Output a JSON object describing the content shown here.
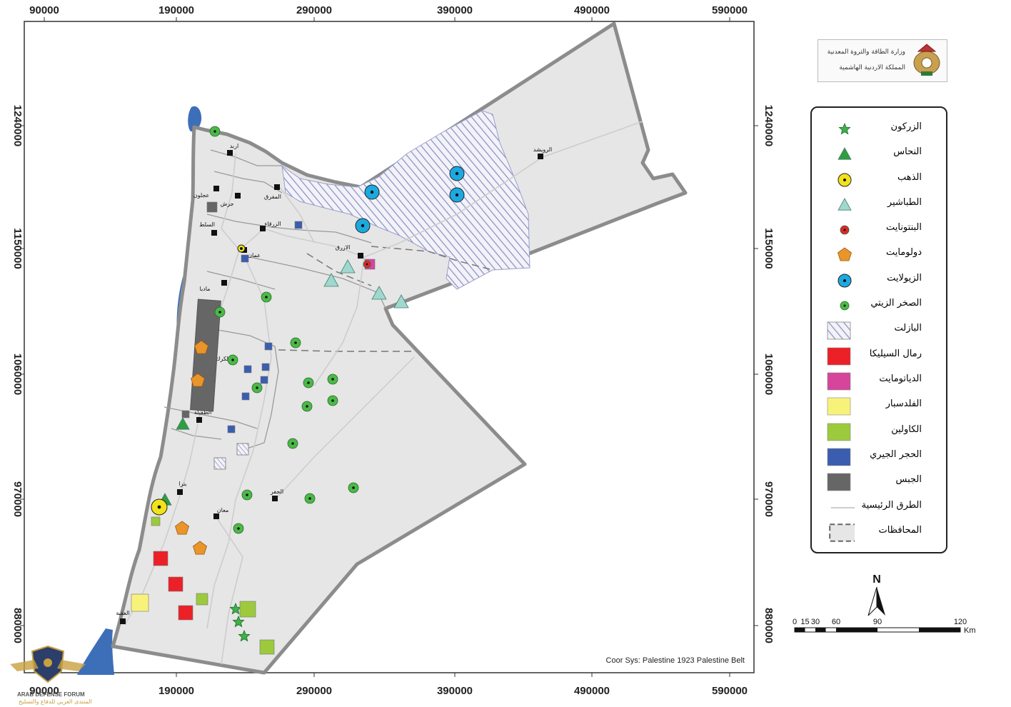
{
  "map": {
    "x_ticks": [
      "90000",
      "190000",
      "290000",
      "390000",
      "490000",
      "590000"
    ],
    "y_ticks": [
      "1240000",
      "1150000",
      "1060000",
      "970000",
      "880000"
    ],
    "crs_label": "Coor Sys: Palestine 1923 Palestine Belt",
    "colors": {
      "land": "#e6e6e6",
      "border": "#8c8c8c",
      "water": "#3d6fb8",
      "road": "#cfcfcf",
      "basalt_hatch": "#8a93c2"
    },
    "cities": [
      {
        "name": "اربد",
        "icon": "city-square-icon"
      },
      {
        "name": "عجلون",
        "icon": "city-square-icon"
      },
      {
        "name": "جرش",
        "icon": "city-square-icon"
      },
      {
        "name": "المفرق",
        "icon": "city-square-icon"
      },
      {
        "name": "السلط",
        "icon": "city-square-icon"
      },
      {
        "name": "الزرقاء",
        "icon": "city-square-icon"
      },
      {
        "name": "عمان",
        "icon": "city-square-icon"
      },
      {
        "name": "الازرق",
        "icon": "city-square-icon"
      },
      {
        "name": "الرويشد",
        "icon": "city-square-icon"
      },
      {
        "name": "مادبا",
        "icon": "city-square-icon"
      },
      {
        "name": "الكرك",
        "icon": "city-square-icon"
      },
      {
        "name": "الطفيلة",
        "icon": "city-square-icon"
      },
      {
        "name": "بترا",
        "icon": "city-square-icon"
      },
      {
        "name": "الجفر",
        "icon": "city-square-icon"
      },
      {
        "name": "معان",
        "icon": "city-square-icon"
      },
      {
        "name": "العقبة",
        "icon": "city-square-icon"
      }
    ]
  },
  "legend": {
    "items": [
      {
        "label": "الزركون",
        "symbol": "star",
        "color": "#3fb04a"
      },
      {
        "label": "النحاس",
        "symbol": "triangle",
        "color": "#2e9e3e"
      },
      {
        "label": "الذهب",
        "symbol": "circle-dot",
        "color": "#f2e21a"
      },
      {
        "label": "الطباشير",
        "symbol": "triangle",
        "color": "#9fd8cf"
      },
      {
        "label": "البنتونايت",
        "symbol": "small-dot",
        "color": "#e0262d"
      },
      {
        "label": "دولومايت",
        "symbol": "pentagon",
        "color": "#e9952a"
      },
      {
        "label": "الزيولايت",
        "symbol": "circle-dot",
        "color": "#1ca9e0"
      },
      {
        "label": "الصخر الزيتي",
        "symbol": "small-dot",
        "color": "#4cb848"
      },
      {
        "label": "البازلت",
        "symbol": "hatch",
        "color": "#8a93c2"
      },
      {
        "label": "رمال السيليكا",
        "symbol": "rect",
        "color": "#ec2027"
      },
      {
        "label": "الدياتومايت",
        "symbol": "rect",
        "color": "#d6459b"
      },
      {
        "label": "الفلدسبار",
        "symbol": "rect",
        "color": "#f7f27a"
      },
      {
        "label": "الكاولين",
        "symbol": "rect",
        "color": "#9cca3c"
      },
      {
        "label": "الحجر الجيري",
        "symbol": "rect",
        "color": "#3b5db0"
      },
      {
        "label": "الجبس",
        "symbol": "rect",
        "color": "#666666"
      },
      {
        "label": "الطرق الرئيسية",
        "symbol": "line",
        "color": "#cccccc"
      },
      {
        "label": "المحافظات",
        "symbol": "dashed-rect",
        "color": "#e6e6e6"
      }
    ]
  },
  "scale_bar": {
    "labels": [
      "0",
      "15",
      "30",
      "60",
      "90",
      "120"
    ],
    "unit": "Km"
  },
  "north_arrow": {
    "letter": "N",
    "icon": "north-arrow-icon"
  },
  "ministry": {
    "line1": "وزارة الطاقة والثروة المعدنية",
    "line2": "المملكة الاردنية الهاشمية",
    "icon": "jordan-coat-of-arms-icon"
  },
  "watermark": {
    "title": "ARAB DEFENSE FORUM",
    "subtitle": "المنتدى العربي للدفاع والتسليح",
    "icon": "eagle-emblem-icon"
  }
}
